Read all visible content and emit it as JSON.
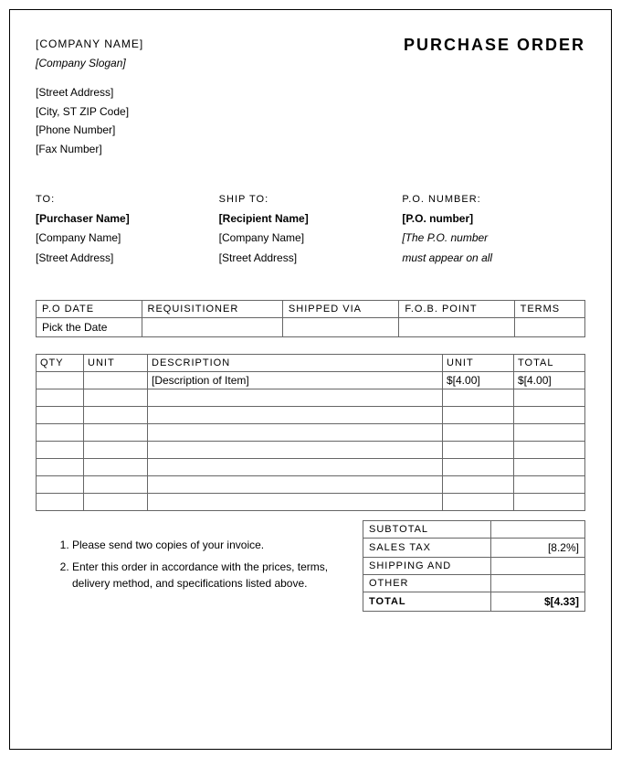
{
  "header": {
    "company_name": "[COMPANY NAME]",
    "company_slogan": "[Company Slogan]",
    "street": "[Street Address]",
    "city_zip": "[City, ST ZIP Code]",
    "phone": "[Phone Number]",
    "fax": "[Fax Number]",
    "title": "PURCHASE ORDER"
  },
  "to": {
    "label": "TO:",
    "name": "[Purchaser Name]",
    "company": "[Company Name]",
    "street": "[Street Address]"
  },
  "ship_to": {
    "label": "SHIP TO:",
    "name": "[Recipient Name]",
    "company": "[Company Name]",
    "street": "[Street Address]"
  },
  "po": {
    "label": "P.O. NUMBER:",
    "number": "[P.O. number]",
    "note1": "[The P.O. number",
    "note2": "must appear on all"
  },
  "meta": {
    "headers": [
      "P.O DATE",
      "REQUISITIONER",
      "SHIPPED VIA",
      "F.O.B. POINT",
      "TERMS"
    ],
    "row": [
      "Pick the Date",
      "",
      "",
      "",
      ""
    ]
  },
  "items": {
    "headers": [
      "QTY",
      "UNIT",
      "DESCRIPTION",
      "UNIT",
      "TOTAL"
    ],
    "rows": [
      {
        "qty": "",
        "unit": "",
        "desc": "[Description of Item]",
        "unit_price": "$[4.00]",
        "total": "$[4.00]"
      },
      {
        "qty": "",
        "unit": "",
        "desc": "",
        "unit_price": "",
        "total": ""
      },
      {
        "qty": "",
        "unit": "",
        "desc": "",
        "unit_price": "",
        "total": ""
      },
      {
        "qty": "",
        "unit": "",
        "desc": "",
        "unit_price": "",
        "total": ""
      },
      {
        "qty": "",
        "unit": "",
        "desc": "",
        "unit_price": "",
        "total": ""
      },
      {
        "qty": "",
        "unit": "",
        "desc": "",
        "unit_price": "",
        "total": ""
      },
      {
        "qty": "",
        "unit": "",
        "desc": "",
        "unit_price": "",
        "total": ""
      },
      {
        "qty": "",
        "unit": "",
        "desc": "",
        "unit_price": "",
        "total": ""
      }
    ]
  },
  "notes": {
    "n1": "Please send two copies of your invoice.",
    "n2": "Enter this order in accordance with the prices, terms, delivery method, and specifications listed above."
  },
  "totals": {
    "subtotal_label": "SUBTOTAL",
    "subtotal_val": "",
    "tax_label": "SALES TAX",
    "tax_val": "[8.2%]",
    "ship_label": "SHIPPING AND",
    "ship_val": "",
    "other_label": "OTHER",
    "other_val": "",
    "total_label": "TOTAL",
    "total_val": "$[4.33]"
  }
}
